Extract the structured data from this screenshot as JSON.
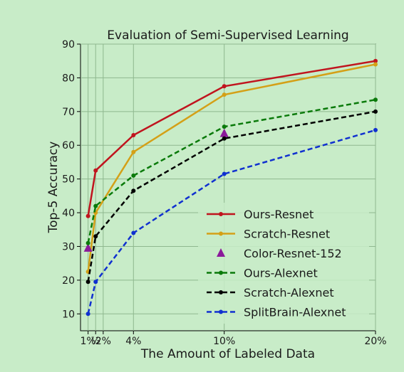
{
  "chart_data": {
    "type": "line",
    "title": "Evaluation of Semi-Supervised Learning",
    "xlabel": "The Amount of Labeled Data",
    "ylabel": "Top-5 Accuracy",
    "x": [
      1,
      1.5,
      2,
      4,
      10,
      20
    ],
    "xticks": [
      {
        "value": 1,
        "label": "1%"
      },
      {
        "value": 1.5,
        "label": "½"
      },
      {
        "value": 2,
        "label": "2%"
      },
      {
        "value": 4,
        "label": "4%"
      },
      {
        "value": 10,
        "label": "10%"
      },
      {
        "value": 20,
        "label": "20%"
      }
    ],
    "xlim": [
      0.5,
      20
    ],
    "ylim": [
      5,
      90
    ],
    "yticks": [
      10,
      20,
      30,
      40,
      50,
      60,
      70,
      80,
      90
    ],
    "grid": true,
    "legend_position": "lower-right",
    "background": "#c8ecc8",
    "series": [
      {
        "name": "Ours-Resnet",
        "color": "#c0141e",
        "dashed": false,
        "marker": "circle",
        "points": [
          [
            1,
            39
          ],
          [
            1.5,
            52.5
          ],
          [
            4,
            63
          ],
          [
            10,
            77.5
          ],
          [
            20,
            85
          ]
        ]
      },
      {
        "name": "Scratch-Resnet",
        "color": "#d4a017",
        "dashed": false,
        "marker": "circle",
        "points": [
          [
            1,
            22.5
          ],
          [
            1.5,
            40
          ],
          [
            4,
            58
          ],
          [
            10,
            75
          ],
          [
            20,
            84
          ]
        ]
      },
      {
        "name": "Color-Resnet-152",
        "color": "#8b1a9a",
        "dashed": false,
        "marker": "triangle",
        "points": [
          [
            1,
            29.5
          ],
          [
            10,
            63.5
          ]
        ]
      },
      {
        "name": "Ours-Alexnet",
        "color": "#0a7a0a",
        "dashed": true,
        "marker": "circle",
        "points": [
          [
            1,
            31
          ],
          [
            1.5,
            42
          ],
          [
            4,
            51
          ],
          [
            10,
            65.5
          ],
          [
            20,
            73.5
          ]
        ]
      },
      {
        "name": "Scratch-Alexnet",
        "color": "#000000",
        "dashed": true,
        "marker": "circle",
        "points": [
          [
            1,
            19.5
          ],
          [
            1.5,
            33
          ],
          [
            4,
            46.5
          ],
          [
            10,
            62
          ],
          [
            20,
            70
          ]
        ]
      },
      {
        "name": "SplitBrain-Alexnet",
        "color": "#1030d0",
        "dashed": true,
        "marker": "circle",
        "points": [
          [
            1,
            10
          ],
          [
            1.5,
            19.5
          ],
          [
            4,
            34
          ],
          [
            10,
            51.5
          ],
          [
            20,
            64.5
          ]
        ]
      }
    ]
  }
}
